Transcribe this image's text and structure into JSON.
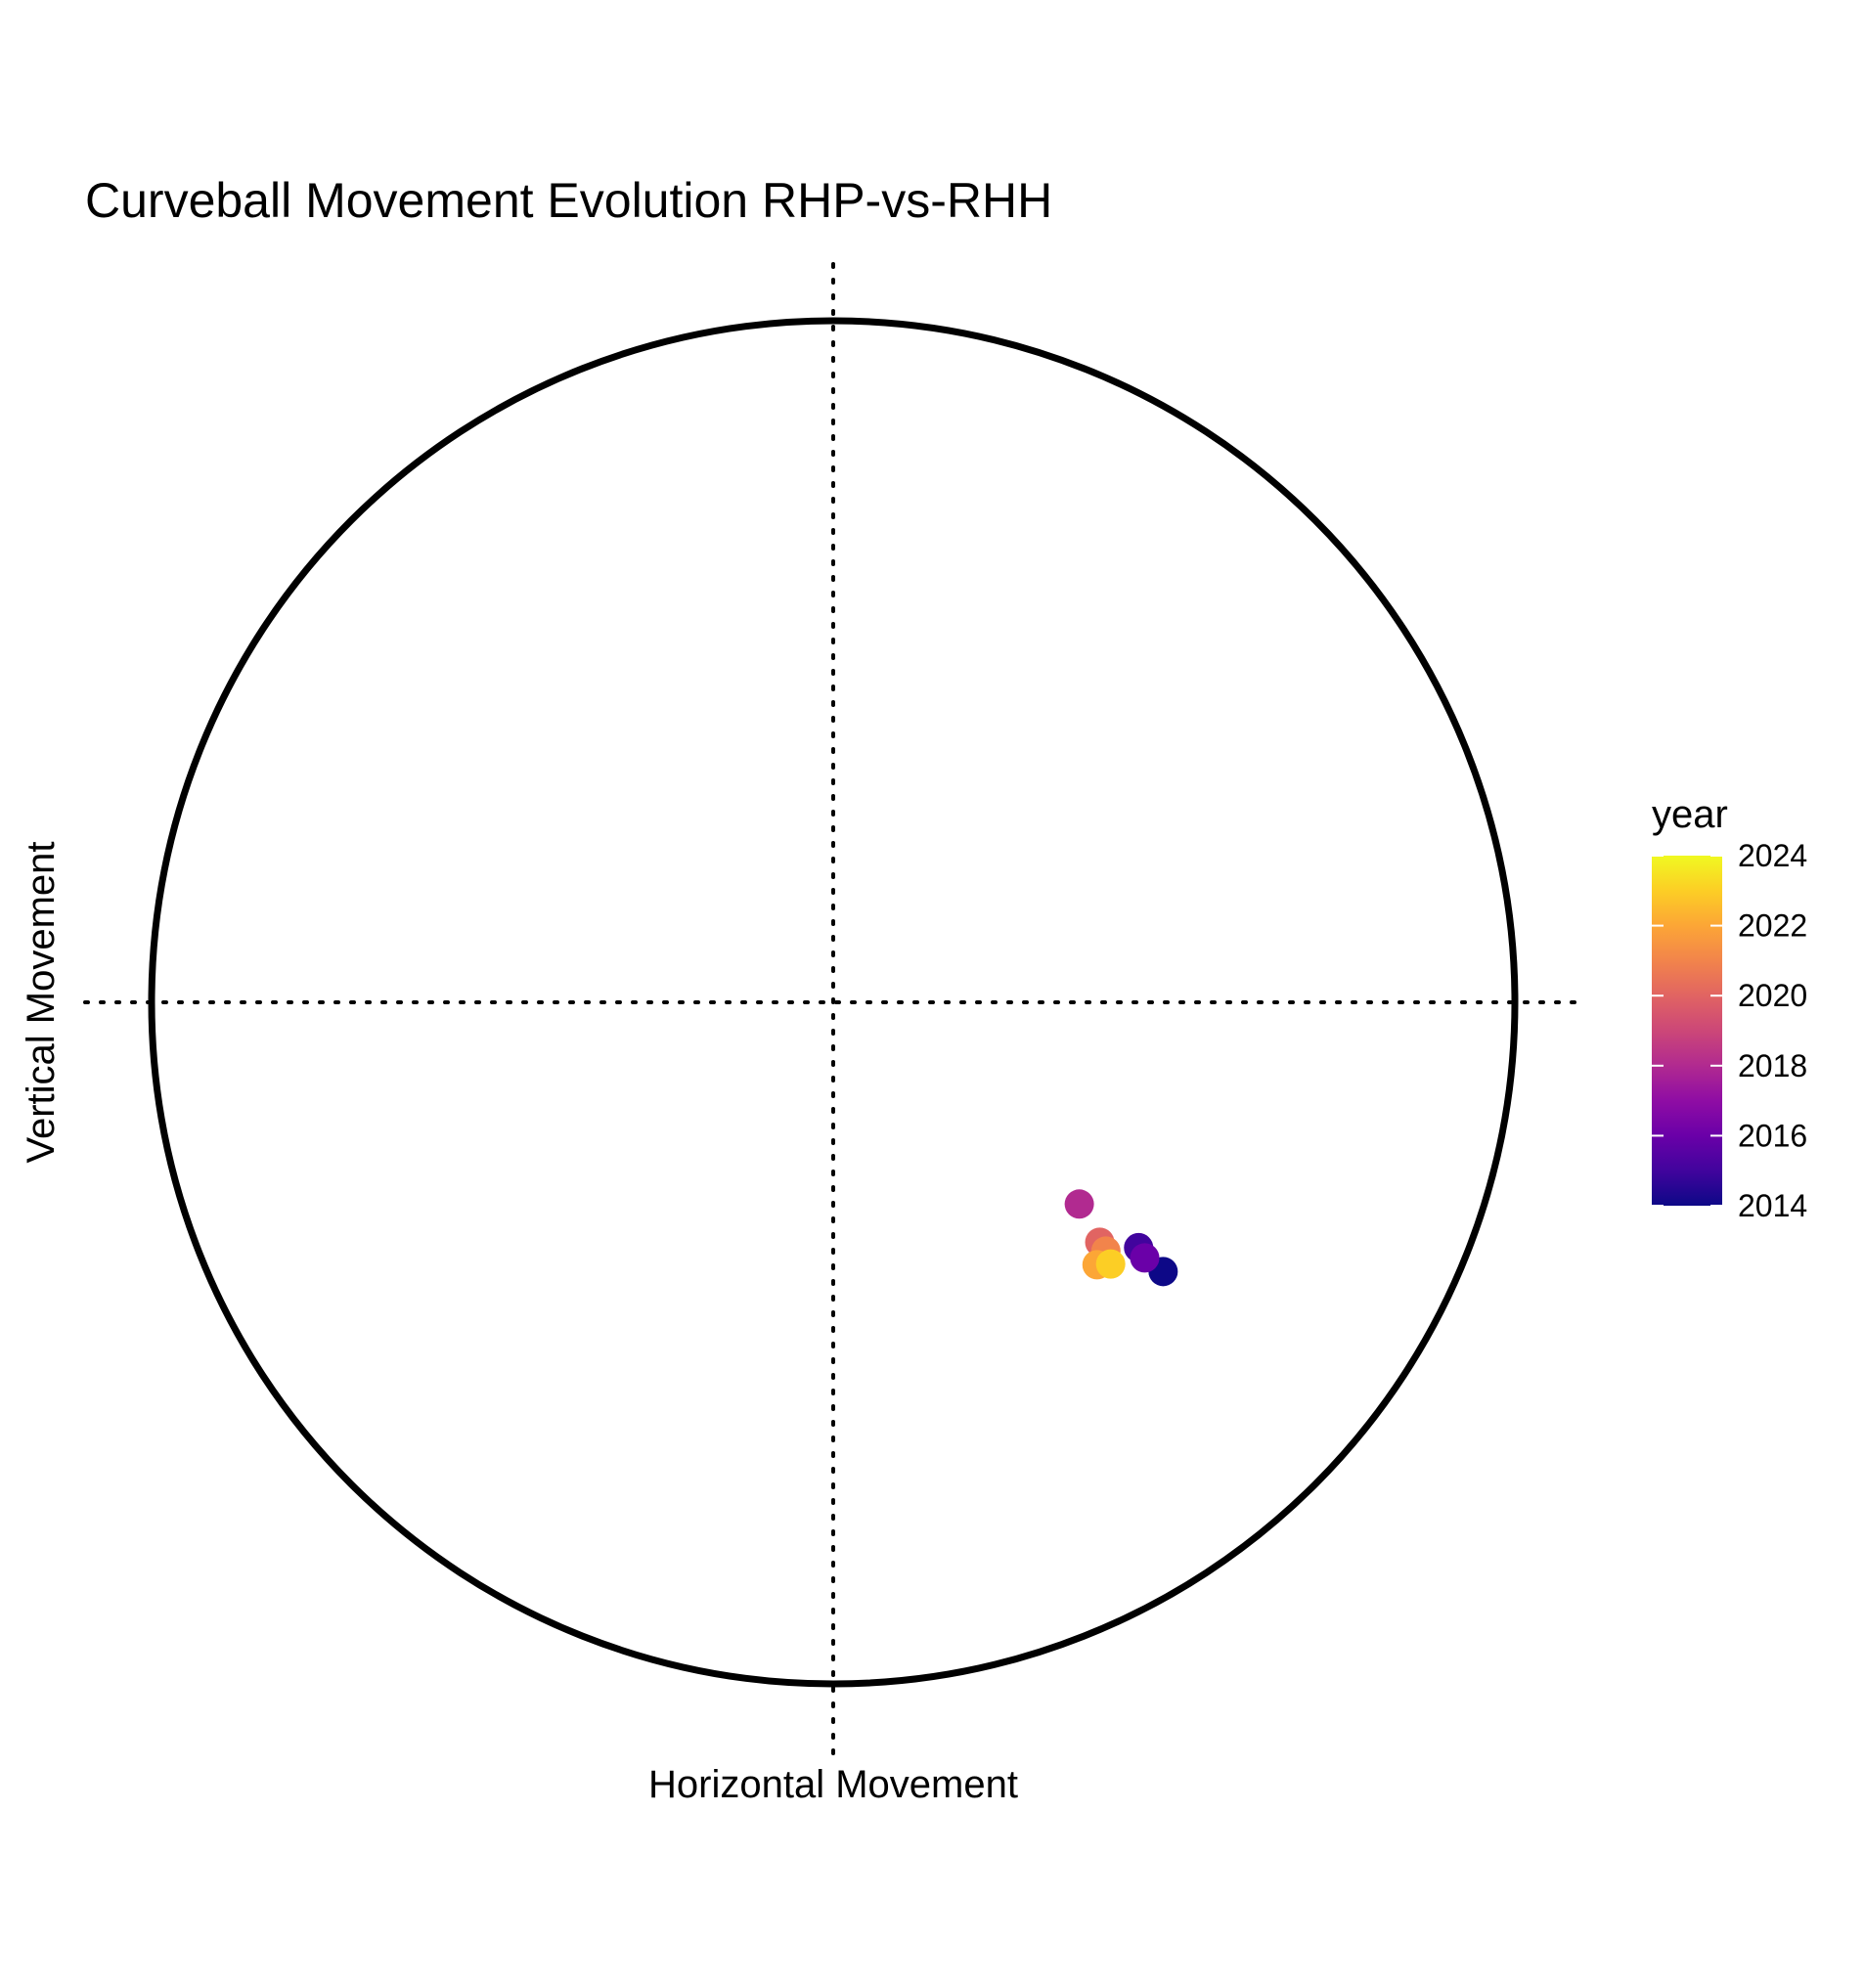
{
  "chart_data": {
    "type": "scatter",
    "title": "Curveball Movement Evolution RHP-vs-RHH",
    "xlabel": "Horizontal Movement",
    "ylabel": "Vertical Movement",
    "xlim": [
      -1,
      1
    ],
    "ylim": [
      -1,
      1
    ],
    "reference_circle": true,
    "reference_lines": "dotted crosshair at x=0 and y=0",
    "grid": false,
    "color_scale": {
      "title": "year",
      "palette": "plasma",
      "min": 2014,
      "max": 2024,
      "ticks": [
        "2014",
        "2016",
        "2018",
        "2020",
        "2022",
        "2024"
      ],
      "position": "right"
    },
    "points": [
      {
        "year": 2014,
        "x": 0.484,
        "y": -0.395
      },
      {
        "year": 2015,
        "x": 0.448,
        "y": -0.36
      },
      {
        "year": 2016,
        "x": 0.457,
        "y": -0.375
      },
      {
        "year": 2018,
        "x": 0.361,
        "y": -0.296
      },
      {
        "year": 2020,
        "x": 0.391,
        "y": -0.352
      },
      {
        "year": 2021,
        "x": 0.4,
        "y": -0.365
      },
      {
        "year": 2022,
        "x": 0.387,
        "y": -0.385
      },
      {
        "year": 2023,
        "x": 0.407,
        "y": -0.384
      }
    ]
  }
}
